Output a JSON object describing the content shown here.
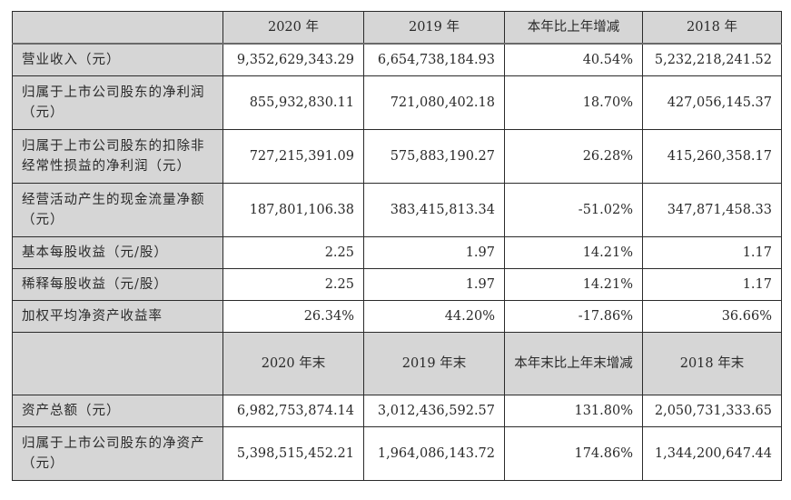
{
  "table": {
    "header1": {
      "label": "",
      "columns": [
        "2020 年",
        "2019 年",
        "本年比上年增减",
        "2018 年"
      ]
    },
    "rows1": [
      {
        "label": "营业收入（元）",
        "values": [
          "9,352,629,343.29",
          "6,654,738,184.93",
          "40.54%",
          "5,232,218,241.52"
        ]
      },
      {
        "label": "归属于上市公司股东的净利润（元）",
        "values": [
          "855,932,830.11",
          "721,080,402.18",
          "18.70%",
          "427,056,145.37"
        ]
      },
      {
        "label": "归属于上市公司股东的扣除非经常性损益的净利润（元）",
        "values": [
          "727,215,391.09",
          "575,883,190.27",
          "26.28%",
          "415,260,358.17"
        ]
      },
      {
        "label": "经营活动产生的现金流量净额（元）",
        "values": [
          "187,801,106.38",
          "383,415,813.34",
          "-51.02%",
          "347,871,458.33"
        ]
      },
      {
        "label": "基本每股收益（元/股）",
        "values": [
          "2.25",
          "1.97",
          "14.21%",
          "1.17"
        ]
      },
      {
        "label": "稀释每股收益（元/股）",
        "values": [
          "2.25",
          "1.97",
          "14.21%",
          "1.17"
        ]
      },
      {
        "label": "加权平均净资产收益率",
        "values": [
          "26.34%",
          "44.20%",
          "-17.86%",
          "36.66%"
        ]
      }
    ],
    "header2": {
      "label": "",
      "columns": [
        "2020 年末",
        "2019 年末",
        "本年末比上年末增减",
        "2018 年末"
      ]
    },
    "rows2": [
      {
        "label": "资产总额（元）",
        "values": [
          "6,982,753,874.14",
          "3,012,436,592.57",
          "131.80%",
          "2,050,731,333.65"
        ]
      },
      {
        "label": "归属于上市公司股东的净资产（元）",
        "values": [
          "5,398,515,452.21",
          "1,964,086,143.72",
          "174.86%",
          "1,344,200,647.44"
        ]
      }
    ]
  }
}
